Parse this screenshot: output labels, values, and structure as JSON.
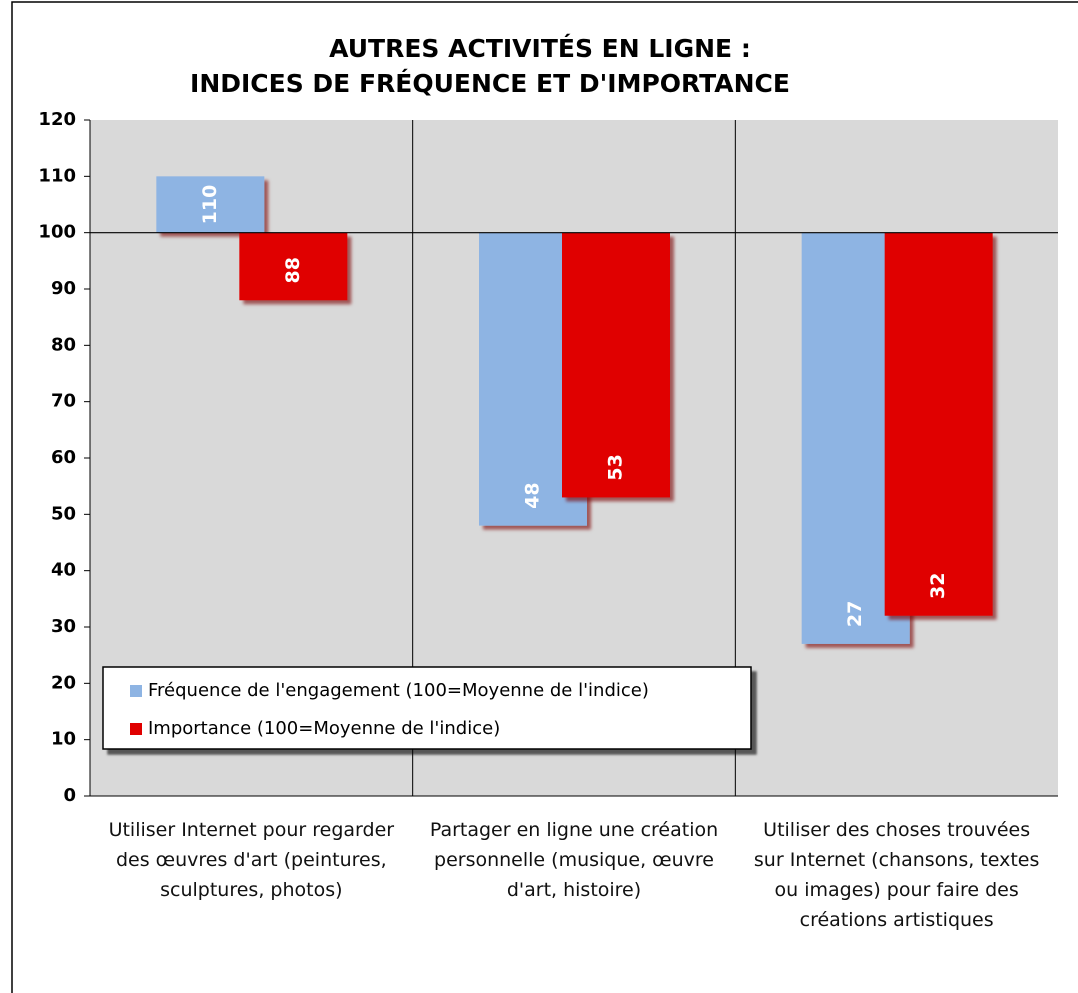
{
  "chart_data": {
    "type": "bar",
    "title": [
      "AUTRES ACTIVITÉS EN LIGNE :",
      "INDICES DE FRÉQUENCE ET D'IMPORTANCE"
    ],
    "categories": [
      "Utiliser Internet pour regarder des œuvres d'art (peintures, sculptures, photos)",
      "Partager en ligne une création personnelle (musique, œuvre d'art, histoire)",
      "Utiliser des choses trouvées sur Internet (chansons, textes ou images) pour faire des créations artistiques"
    ],
    "series": [
      {
        "name": "Fréquence de l'engagement (100=Moyenne de l'indice)",
        "color": "#8eb4e3",
        "values": [
          110,
          48,
          27
        ]
      },
      {
        "name": "Importance (100=Moyenne de l'indice)",
        "color": "#e00000",
        "values": [
          88,
          53,
          32
        ]
      }
    ],
    "crosses_at": 100,
    "ylim": [
      0,
      120
    ],
    "yticks": [
      0,
      10,
      20,
      30,
      40,
      50,
      60,
      70,
      80,
      90,
      100,
      110,
      120
    ],
    "legend": "bottom-left"
  }
}
